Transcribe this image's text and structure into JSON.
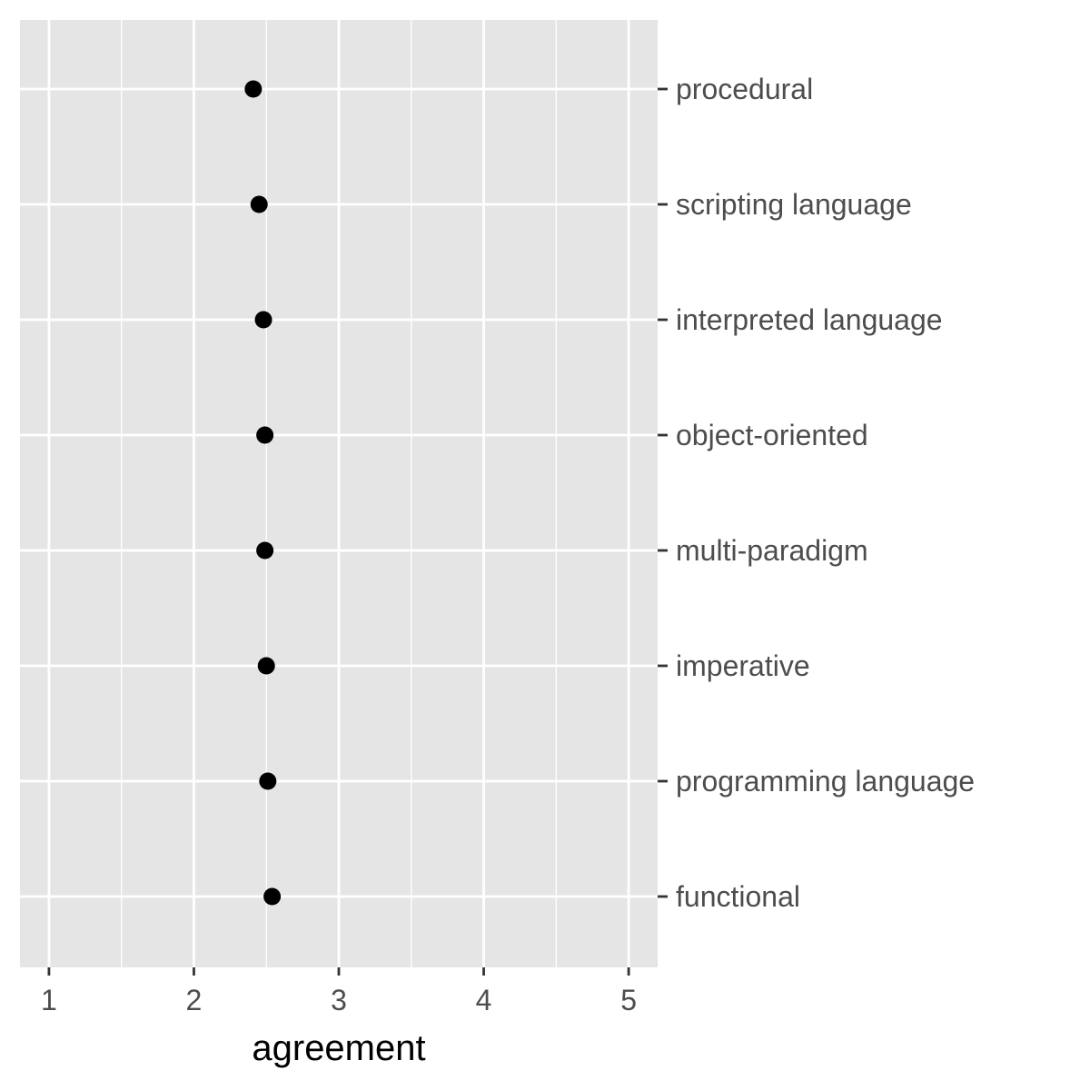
{
  "chart_data": {
    "type": "scatter",
    "title": "",
    "xlabel": "agreement",
    "ylabel": "",
    "xlim": [
      0.8,
      5.2
    ],
    "x_ticks": [
      1,
      2,
      3,
      4,
      5
    ],
    "x_tick_labels": [
      "1",
      "2",
      "3",
      "4",
      "5"
    ],
    "categories": [
      "procedural",
      "scripting language",
      "interpreted language",
      "object-oriented",
      "multi-paradigm",
      "imperative",
      "programming language",
      "functional"
    ],
    "values": [
      2.41,
      2.45,
      2.48,
      2.49,
      2.49,
      2.5,
      2.51,
      2.54
    ],
    "y_axis_position": "right",
    "grid": true,
    "legend": "none"
  },
  "colors": {
    "panel_background": "#e5e5e5",
    "grid_line": "#ffffff",
    "point": "#000000",
    "tick_mark": "#333333",
    "tick_text": "#4d4d4d",
    "axis_title": "#000000"
  }
}
